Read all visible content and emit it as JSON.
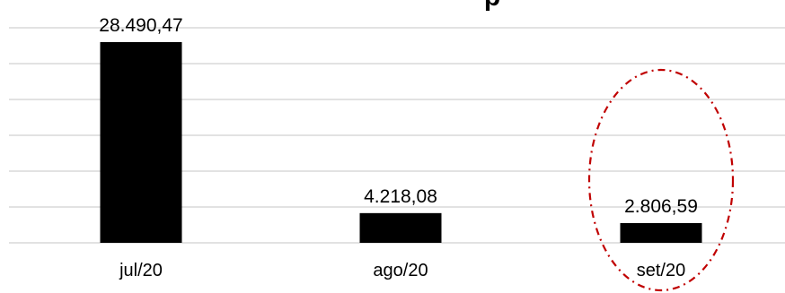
{
  "chart_data": {
    "type": "bar",
    "categories": [
      "jul/20",
      "ago/20",
      "set/20"
    ],
    "values": [
      28490.47,
      4218.08,
      2806.59
    ],
    "data_labels": [
      "28.490,47",
      "4.218,08",
      "2.806,59"
    ],
    "ylim": [
      0,
      30000
    ],
    "gridlines": true,
    "bar_color": "#000000",
    "grid_color": "#d9d9d9",
    "title_fragment": "p",
    "highlight": {
      "category": "set/20",
      "shape": "dash-dot ellipse",
      "color": "#c00000"
    }
  }
}
